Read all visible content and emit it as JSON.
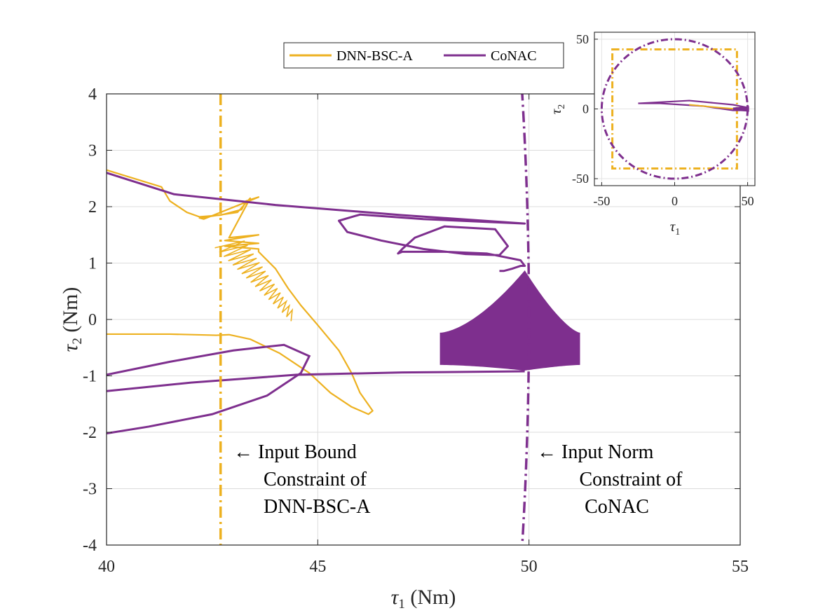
{
  "chart_data": [
    {
      "type": "line",
      "xlabel": "τ1 (Nm)",
      "ylabel": "τ2 (Nm)",
      "xlim": [
        40,
        55
      ],
      "ylim": [
        -4,
        4
      ],
      "xticks": [
        "40",
        "45",
        "50",
        "55"
      ],
      "yticks": [
        "4",
        "3",
        "2",
        "1",
        "0",
        "-1",
        "-2",
        "-3",
        "-4"
      ],
      "grid": true,
      "legend_position": "top-center",
      "series": [
        {
          "name": "DNN-BSC-A",
          "color": "#EDB120",
          "x": [
            40.0,
            41.3,
            41.5,
            41.9,
            42.2,
            42.7,
            43.2,
            43.3,
            43.6,
            42.3,
            42.2,
            43.1,
            43.4,
            42.9,
            43.6,
            42.8,
            43.6,
            42.8,
            43.6,
            43.6,
            44.0,
            44.3,
            44.6,
            45.0,
            45.5,
            45.8,
            46.0,
            46.3,
            46.2,
            45.8,
            45.3,
            44.8,
            44.1,
            43.4,
            42.9,
            42.6,
            41.5,
            40.0
          ],
          "y": [
            2.65,
            2.35,
            2.1,
            1.9,
            1.82,
            1.85,
            1.95,
            2.1,
            2.17,
            1.78,
            1.8,
            1.9,
            2.15,
            1.45,
            1.5,
            1.4,
            1.35,
            1.3,
            1.25,
            1.2,
            0.9,
            0.55,
            0.25,
            -0.1,
            -0.55,
            -0.95,
            -1.3,
            -1.62,
            -1.68,
            -1.55,
            -1.3,
            -0.95,
            -0.6,
            -0.35,
            -0.27,
            -0.28,
            -0.26,
            -0.26
          ]
        },
        {
          "name": "CoNAC",
          "color": "#7E2F8E",
          "x": [
            40.0,
            41.6,
            44.0,
            47.0,
            49.9,
            49.0,
            47.5,
            46.0,
            45.5,
            45.7,
            46.5,
            47.5,
            48.5,
            49.3,
            49.5,
            49.2,
            48.0,
            47.3,
            47.0,
            46.9,
            47.0,
            48.0,
            49.0,
            49.8,
            49.9,
            49.8,
            49.6,
            49.5,
            49.4,
            49.3
          ],
          "y": [
            2.6,
            2.22,
            2.03,
            1.85,
            1.7,
            1.73,
            1.78,
            1.86,
            1.75,
            1.55,
            1.4,
            1.25,
            1.16,
            1.14,
            1.3,
            1.6,
            1.65,
            1.45,
            1.25,
            1.17,
            1.2,
            1.2,
            1.17,
            1.05,
            0.95,
            0.95,
            0.9,
            0.88,
            0.86,
            0.86
          ]
        }
      ]
    },
    {
      "type": "line",
      "xlabel": "τ1",
      "ylabel": "τ2",
      "xlim": [
        -55,
        55
      ],
      "ylim": [
        -55,
        55
      ],
      "xticks": [
        "-50",
        "0",
        "50"
      ],
      "yticks": [
        "50",
        "0",
        "-50"
      ],
      "grid": true
    }
  ],
  "legend": {
    "items": [
      {
        "label": "DNN-BSC-A",
        "color": "#EDB120"
      },
      {
        "label": "CoNAC",
        "color": "#7E2F8E"
      }
    ]
  },
  "annotations": {
    "bound": [
      "← Input Bound",
      "Constraint of",
      "DNN-BSC-A"
    ],
    "norm": [
      "← Input Norm",
      "Constraint of",
      "CoNAC"
    ]
  },
  "constraints": {
    "bound_value": 42.7,
    "norm_radius": 50
  }
}
